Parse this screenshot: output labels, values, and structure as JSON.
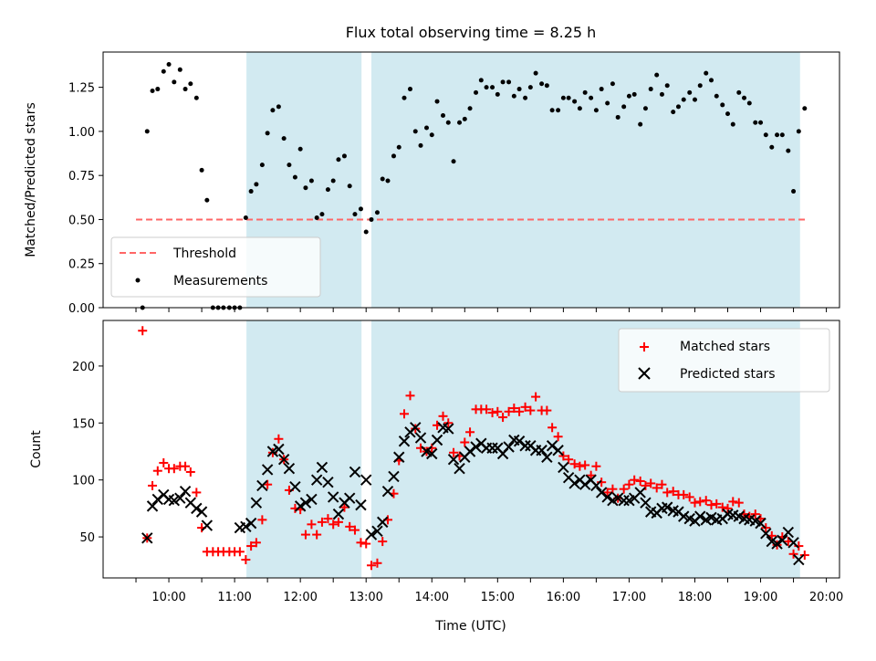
{
  "chart_data": [
    {
      "type": "scatter",
      "title": "Flux total observing time = 8.25 h",
      "ylabel": "Matched/Predicted stars",
      "ylim": [
        0,
        1.45
      ],
      "yticks": [
        0.0,
        0.25,
        0.5,
        0.75,
        1.0,
        1.25
      ],
      "ytick_labels": [
        "0.00",
        "0.25",
        "0.50",
        "0.75",
        "1.00",
        "1.25"
      ],
      "xlim_hours": [
        9.0,
        20.2
      ],
      "shaded_intervals_hours": [
        [
          11.18,
          12.93
        ],
        [
          13.08,
          19.6
        ]
      ],
      "shade_color": "#add8e6",
      "legend_position": "lower-left",
      "threshold": {
        "name": "Threshold",
        "value": 0.5,
        "x_range_hours": [
          9.5,
          19.7
        ],
        "color": "#ff6666"
      },
      "series": [
        {
          "name": "Measurements",
          "color": "#000000",
          "x_hours": [
            9.6,
            9.67,
            9.75,
            9.83,
            9.92,
            10.0,
            10.08,
            10.17,
            10.25,
            10.33,
            10.42,
            10.5,
            10.58,
            10.67,
            10.75,
            10.83,
            10.92,
            11.0,
            11.08,
            11.17,
            11.25,
            11.33,
            11.42,
            11.5,
            11.58,
            11.67,
            11.75,
            11.83,
            11.92,
            12.0,
            12.08,
            12.17,
            12.25,
            12.33,
            12.42,
            12.5,
            12.58,
            12.67,
            12.75,
            12.83,
            12.92,
            13.0,
            13.08,
            13.17,
            13.25,
            13.33,
            13.42,
            13.5,
            13.58,
            13.67,
            13.75,
            13.83,
            13.92,
            14.0,
            14.08,
            14.17,
            14.25,
            14.33,
            14.42,
            14.5,
            14.58,
            14.67,
            14.75,
            14.83,
            14.92,
            15.0,
            15.08,
            15.17,
            15.25,
            15.33,
            15.42,
            15.5,
            15.58,
            15.67,
            15.75,
            15.83,
            15.92,
            16.0,
            16.08,
            16.17,
            16.25,
            16.33,
            16.42,
            16.5,
            16.58,
            16.67,
            16.75,
            16.83,
            16.92,
            17.0,
            17.08,
            17.17,
            17.25,
            17.33,
            17.42,
            17.5,
            17.58,
            17.67,
            17.75,
            17.83,
            17.92,
            18.0,
            18.08,
            18.17,
            18.25,
            18.33,
            18.42,
            18.5,
            18.58,
            18.67,
            18.75,
            18.83,
            18.92,
            19.0,
            19.08,
            19.17,
            19.25,
            19.33,
            19.42,
            19.5,
            19.58,
            19.67
          ],
          "values": [
            0.0,
            1.0,
            1.23,
            1.24,
            1.34,
            1.38,
            1.28,
            1.35,
            1.24,
            1.27,
            1.19,
            0.78,
            0.61,
            0.0,
            0.0,
            0.0,
            0.0,
            0.0,
            0.0,
            0.51,
            0.66,
            0.7,
            0.81,
            0.99,
            1.12,
            1.14,
            0.96,
            0.81,
            0.74,
            0.9,
            0.68,
            0.72,
            0.51,
            0.53,
            0.67,
            0.72,
            0.84,
            0.86,
            0.69,
            0.53,
            0.56,
            0.43,
            0.5,
            0.54,
            0.73,
            0.72,
            0.86,
            0.91,
            1.19,
            1.24,
            1.0,
            0.92,
            1.02,
            0.98,
            1.17,
            1.09,
            1.05,
            0.83,
            1.05,
            1.07,
            1.13,
            1.22,
            1.29,
            1.25,
            1.25,
            1.21,
            1.28,
            1.28,
            1.2,
            1.24,
            1.19,
            1.25,
            1.33,
            1.27,
            1.26,
            1.12,
            1.12,
            1.19,
            1.19,
            1.17,
            1.13,
            1.22,
            1.19,
            1.12,
            1.24,
            1.16,
            1.27,
            1.08,
            1.14,
            1.2,
            1.21,
            1.04,
            1.13,
            1.24,
            1.32,
            1.21,
            1.26,
            1.11,
            1.14,
            1.18,
            1.22,
            1.18,
            1.26,
            1.33,
            1.29,
            1.2,
            1.15,
            1.1,
            1.04,
            1.22,
            1.19,
            1.16,
            1.05,
            1.05,
            0.98,
            0.91,
            0.98,
            0.98,
            0.89,
            0.66,
            1.0,
            1.13
          ]
        }
      ]
    },
    {
      "type": "scatter",
      "xlabel": "Time (UTC)",
      "ylabel": "Count",
      "ylim": [
        14,
        240
      ],
      "yticks": [
        50,
        100,
        150,
        200
      ],
      "ytick_labels": [
        "50",
        "100",
        "150",
        "200"
      ],
      "xlim_hours": [
        9.0,
        20.2
      ],
      "xticks_hours": [
        10,
        11,
        12,
        13,
        14,
        15,
        16,
        17,
        18,
        19,
        20
      ],
      "xtick_labels": [
        "10:00",
        "11:00",
        "12:00",
        "13:00",
        "14:00",
        "15:00",
        "16:00",
        "17:00",
        "18:00",
        "19:00",
        "20:00"
      ],
      "shaded_intervals_hours": [
        [
          11.18,
          12.93
        ],
        [
          13.08,
          19.6
        ]
      ],
      "shade_color": "#add8e6",
      "legend_position": "upper-right",
      "series": [
        {
          "name": "Matched stars",
          "marker": "plus",
          "color": "#ff0000",
          "x_hours": [
            9.6,
            9.67,
            9.75,
            9.83,
            9.92,
            10.0,
            10.08,
            10.17,
            10.25,
            10.33,
            10.42,
            10.5,
            10.58,
            10.67,
            10.75,
            10.83,
            10.92,
            11.0,
            11.08,
            11.17,
            11.25,
            11.33,
            11.42,
            11.5,
            11.58,
            11.67,
            11.75,
            11.83,
            11.92,
            12.0,
            12.08,
            12.17,
            12.25,
            12.33,
            12.42,
            12.5,
            12.58,
            12.67,
            12.75,
            12.83,
            12.92,
            13.0,
            13.08,
            13.17,
            13.25,
            13.33,
            13.42,
            13.5,
            13.58,
            13.67,
            13.75,
            13.83,
            13.92,
            14.0,
            14.08,
            14.17,
            14.25,
            14.33,
            14.42,
            14.5,
            14.58,
            14.67,
            14.75,
            14.83,
            14.92,
            15.0,
            15.08,
            15.17,
            15.25,
            15.33,
            15.42,
            15.5,
            15.58,
            15.67,
            15.75,
            15.83,
            15.92,
            16.0,
            16.08,
            16.17,
            16.25,
            16.33,
            16.42,
            16.5,
            16.58,
            16.67,
            16.75,
            16.83,
            16.92,
            17.0,
            17.08,
            17.17,
            17.25,
            17.33,
            17.42,
            17.5,
            17.58,
            17.67,
            17.75,
            17.83,
            17.92,
            18.0,
            18.08,
            18.17,
            18.25,
            18.33,
            18.42,
            18.5,
            18.58,
            18.67,
            18.75,
            18.83,
            18.92,
            19.0,
            19.08,
            19.17,
            19.25,
            19.33,
            19.42,
            19.5,
            19.58,
            19.67
          ],
          "values": [
            231,
            49,
            95,
            108,
            115,
            110,
            110,
            112,
            112,
            107,
            89,
            58,
            37,
            37,
            37,
            37,
            37,
            37,
            37,
            30,
            42,
            45,
            65,
            96,
            124,
            136,
            118,
            91,
            75,
            74,
            52,
            61,
            52,
            63,
            66,
            61,
            63,
            76,
            59,
            56,
            45,
            44,
            25,
            27,
            46,
            65,
            88,
            117,
            158,
            174,
            145,
            128,
            125,
            128,
            148,
            156,
            150,
            124,
            121,
            133,
            142,
            162,
            162,
            162,
            159,
            160,
            155,
            160,
            163,
            160,
            164,
            161,
            173,
            161,
            161,
            146,
            138,
            121,
            118,
            114,
            112,
            113,
            104,
            112,
            98,
            89,
            92,
            84,
            92,
            96,
            100,
            99,
            95,
            97,
            93,
            96,
            89,
            90,
            87,
            87,
            85,
            80,
            81,
            82,
            78,
            79,
            76,
            75,
            81,
            80,
            70,
            68,
            70,
            66,
            58,
            51,
            43,
            50,
            46,
            35,
            42,
            34
          ]
        },
        {
          "name": "Predicted stars",
          "marker": "x",
          "color": "#000000",
          "x_hours": [
            9.67,
            9.75,
            9.83,
            9.92,
            10.0,
            10.08,
            10.17,
            10.25,
            10.33,
            10.42,
            10.5,
            10.58,
            11.08,
            11.17,
            11.25,
            11.33,
            11.42,
            11.5,
            11.58,
            11.67,
            11.75,
            11.83,
            11.92,
            12.0,
            12.08,
            12.17,
            12.25,
            12.33,
            12.42,
            12.5,
            12.58,
            12.67,
            12.75,
            12.83,
            12.92,
            13.0,
            13.08,
            13.17,
            13.25,
            13.33,
            13.42,
            13.5,
            13.58,
            13.67,
            13.75,
            13.83,
            13.92,
            14.0,
            14.08,
            14.17,
            14.25,
            14.33,
            14.42,
            14.5,
            14.58,
            14.67,
            14.75,
            14.83,
            14.92,
            15.0,
            15.08,
            15.17,
            15.25,
            15.33,
            15.42,
            15.5,
            15.58,
            15.67,
            15.75,
            15.83,
            15.92,
            16.0,
            16.08,
            16.17,
            16.25,
            16.33,
            16.42,
            16.5,
            16.58,
            16.67,
            16.75,
            16.83,
            16.92,
            17.0,
            17.08,
            17.17,
            17.25,
            17.33,
            17.42,
            17.5,
            17.58,
            17.67,
            17.75,
            17.83,
            17.92,
            18.0,
            18.08,
            18.17,
            18.25,
            18.33,
            18.42,
            18.5,
            18.58,
            18.67,
            18.75,
            18.83,
            18.92,
            19.0,
            19.08,
            19.17,
            19.25,
            19.33,
            19.42,
            19.5,
            19.58
          ],
          "values": [
            49,
            77,
            83,
            87,
            83,
            82,
            84,
            90,
            80,
            75,
            72,
            60,
            58,
            59,
            62,
            80,
            95,
            109,
            125,
            127,
            118,
            110,
            94,
            77,
            80,
            83,
            100,
            111,
            98,
            85,
            70,
            80,
            84,
            107,
            78,
            100,
            52,
            55,
            63,
            90,
            103,
            120,
            134,
            142,
            146,
            137,
            125,
            123,
            135,
            146,
            145,
            118,
            110,
            120,
            125,
            129,
            132,
            128,
            128,
            128,
            123,
            129,
            135,
            134,
            130,
            130,
            126,
            126,
            120,
            130,
            126,
            111,
            102,
            97,
            100,
            96,
            100,
            95,
            89,
            85,
            82,
            84,
            82,
            82,
            84,
            89,
            80,
            72,
            71,
            75,
            76,
            73,
            72,
            68,
            66,
            64,
            68,
            65,
            67,
            65,
            66,
            70,
            69,
            68,
            66,
            65,
            64,
            62,
            53,
            46,
            44,
            47,
            54,
            45,
            30
          ]
        }
      ]
    }
  ]
}
